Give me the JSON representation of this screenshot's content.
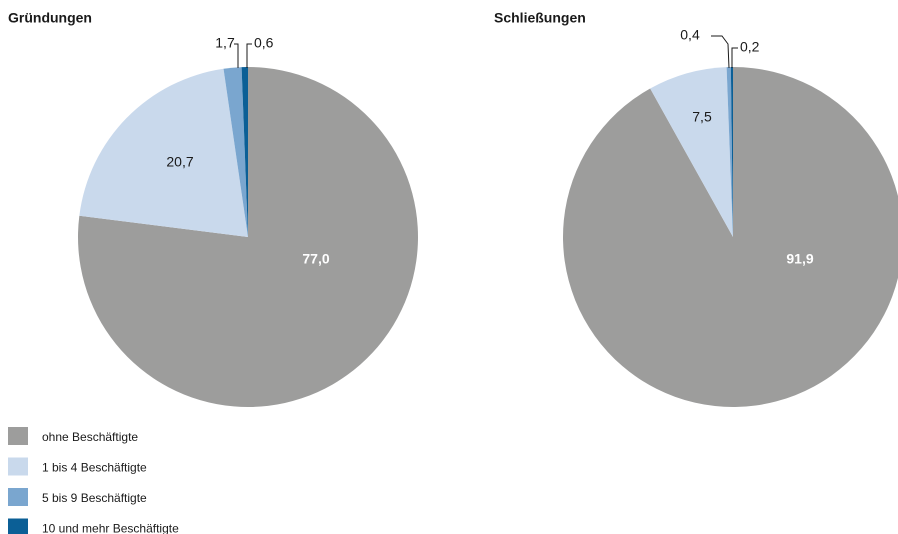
{
  "chart_data": [
    {
      "type": "pie",
      "title": "Gründungen",
      "values": [
        77.0,
        20.7,
        1.7,
        0.6
      ],
      "value_labels": [
        "77,0",
        "20,7",
        "1,7",
        "0,6"
      ]
    },
    {
      "type": "pie",
      "title": "Schließungen",
      "values": [
        91.9,
        7.5,
        0.4,
        0.2
      ],
      "value_labels": [
        "91,9",
        "7,5",
        "0,4",
        "0,2"
      ]
    }
  ],
  "legend": {
    "entries": [
      "ohne Beschäftigte",
      "1 bis 4 Beschäftigte",
      "5 bis 9 Beschäftigte",
      "10 und mehr Beschäftigte"
    ],
    "colors": [
      "#9d9d9c",
      "#c9d9ec",
      "#7aa6cf",
      "#0b5f96"
    ]
  }
}
